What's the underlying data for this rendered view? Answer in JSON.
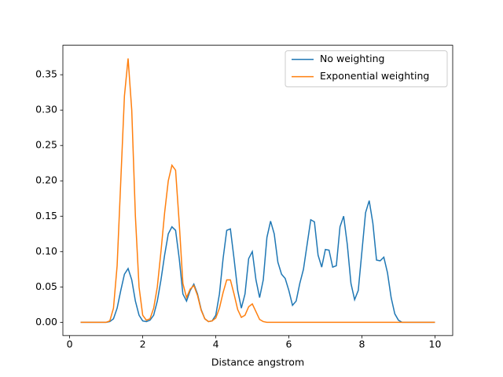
{
  "chart_data": {
    "type": "line",
    "xlabel": "Distance angstrom",
    "x": [
      0.3,
      0.4,
      0.5,
      0.6,
      0.7,
      0.8,
      0.9,
      1.0,
      1.1,
      1.2,
      1.3,
      1.4,
      1.5,
      1.6,
      1.7,
      1.8,
      1.9,
      2.0,
      2.1,
      2.2,
      2.3,
      2.4,
      2.5,
      2.6,
      2.7,
      2.8,
      2.9,
      3.0,
      3.1,
      3.2,
      3.3,
      3.4,
      3.5,
      3.6,
      3.7,
      3.8,
      3.9,
      4.0,
      4.1,
      4.2,
      4.3,
      4.4,
      4.5,
      4.6,
      4.7,
      4.8,
      4.9,
      5.0,
      5.1,
      5.2,
      5.3,
      5.4,
      5.5,
      5.6,
      5.7,
      5.8,
      5.9,
      6.0,
      6.1,
      6.2,
      6.3,
      6.4,
      6.5,
      6.6,
      6.7,
      6.8,
      6.9,
      7.0,
      7.1,
      7.2,
      7.3,
      7.4,
      7.5,
      7.6,
      7.7,
      7.8,
      7.9,
      8.0,
      8.1,
      8.2,
      8.3,
      8.4,
      8.5,
      8.6,
      8.7,
      8.8,
      8.9,
      9.0,
      9.1,
      9.2,
      9.3,
      9.4,
      9.5,
      9.6,
      9.7,
      9.8,
      9.9,
      10.0
    ],
    "series": [
      {
        "name": "No weighting",
        "color": "#1f77b4",
        "values": [
          0,
          0,
          0,
          0,
          0,
          0,
          0,
          0,
          0.001,
          0.005,
          0.02,
          0.045,
          0.068,
          0.076,
          0.06,
          0.03,
          0.01,
          0.002,
          0.001,
          0.003,
          0.01,
          0.03,
          0.06,
          0.095,
          0.125,
          0.135,
          0.13,
          0.09,
          0.04,
          0.03,
          0.045,
          0.054,
          0.04,
          0.018,
          0.005,
          0.001,
          0.002,
          0.01,
          0.04,
          0.09,
          0.13,
          0.132,
          0.09,
          0.045,
          0.02,
          0.04,
          0.09,
          0.1,
          0.06,
          0.035,
          0.06,
          0.12,
          0.143,
          0.125,
          0.085,
          0.068,
          0.062,
          0.045,
          0.024,
          0.03,
          0.055,
          0.075,
          0.11,
          0.145,
          0.142,
          0.095,
          0.078,
          0.103,
          0.102,
          0.078,
          0.08,
          0.135,
          0.15,
          0.11,
          0.055,
          0.032,
          0.045,
          0.1,
          0.155,
          0.172,
          0.14,
          0.088,
          0.087,
          0.092,
          0.07,
          0.035,
          0.012,
          0.003,
          0,
          0,
          0,
          0,
          0,
          0,
          0,
          0,
          0,
          0
        ]
      },
      {
        "name": "Exponential weighting",
        "color": "#ff7f0e",
        "values": [
          0,
          0,
          0,
          0,
          0,
          0,
          0,
          0,
          0.002,
          0.02,
          0.08,
          0.2,
          0.32,
          0.373,
          0.3,
          0.15,
          0.05,
          0.01,
          0.003,
          0.005,
          0.02,
          0.05,
          0.1,
          0.155,
          0.2,
          0.222,
          0.215,
          0.14,
          0.055,
          0.035,
          0.047,
          0.052,
          0.038,
          0.017,
          0.005,
          0.001,
          0.002,
          0.006,
          0.02,
          0.042,
          0.06,
          0.06,
          0.04,
          0.018,
          0.007,
          0.01,
          0.022,
          0.026,
          0.015,
          0.004,
          0.001,
          0,
          0,
          0,
          0,
          0,
          0,
          0,
          0,
          0,
          0,
          0,
          0,
          0,
          0,
          0,
          0,
          0,
          0,
          0,
          0,
          0,
          0,
          0,
          0,
          0,
          0,
          0,
          0,
          0,
          0,
          0,
          0,
          0,
          0,
          0,
          0,
          0,
          0,
          0,
          0,
          0,
          0,
          0,
          0,
          0,
          0,
          0
        ]
      }
    ],
    "xlim": [
      -0.185,
      10.485
    ],
    "xticks": [
      0,
      2,
      4,
      6,
      8,
      10
    ],
    "ylim": [
      -0.0187,
      0.3917
    ],
    "yticks": [
      {
        "value": 0,
        "label": "0.00"
      },
      {
        "value": 0.05,
        "label": "0.05"
      },
      {
        "value": 0.1,
        "label": "0.10"
      },
      {
        "value": 0.15,
        "label": "0.15"
      },
      {
        "value": 0.2,
        "label": "0.20"
      },
      {
        "value": 0.25,
        "label": "0.25"
      },
      {
        "value": 0.3,
        "label": "0.30"
      },
      {
        "value": 0.35,
        "label": "0.35"
      }
    ],
    "legend": "upper right"
  }
}
